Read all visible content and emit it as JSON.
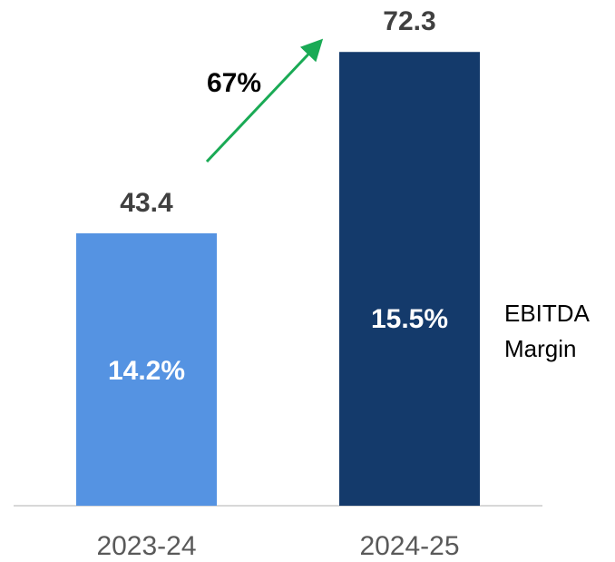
{
  "chart_data": {
    "type": "bar",
    "categories": [
      "2023-24",
      "2024-25"
    ],
    "values": [
      43.4,
      72.3
    ],
    "colors": [
      "#5593e2",
      "#143a6b"
    ],
    "ylim": [
      0,
      80
    ],
    "margins": {
      "name": "EBITDA Margin",
      "values": [
        14.2,
        15.5
      ],
      "value_labels": [
        "14.2%",
        "15.5%"
      ]
    },
    "annotation": "67%"
  }
}
